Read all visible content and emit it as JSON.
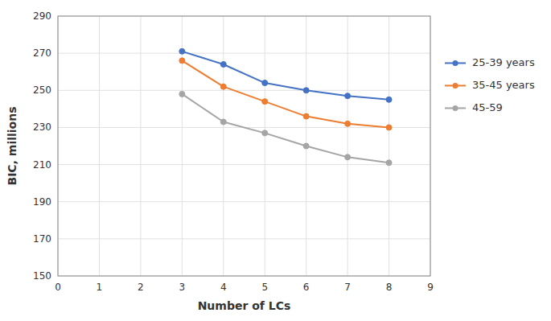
{
  "chart_data": {
    "type": "line",
    "xlabel": "Number of LCs",
    "ylabel": "BIC, millions",
    "x": [
      3,
      4,
      5,
      6,
      7,
      8
    ],
    "series": [
      {
        "name": "25-39 years",
        "color": "#4472C4",
        "values": [
          271,
          264,
          254,
          250,
          247,
          245
        ]
      },
      {
        "name": "35-45 years",
        "color": "#ED7D31",
        "values": [
          266,
          252,
          244,
          236,
          232,
          230
        ]
      },
      {
        "name": "45-59",
        "color": "#A5A5A5",
        "values": [
          248,
          233,
          227,
          220,
          214,
          211
        ]
      }
    ],
    "xlim": [
      0,
      9
    ],
    "ylim": [
      150,
      290
    ],
    "xticks": [
      0,
      1,
      2,
      3,
      4,
      5,
      6,
      7,
      8,
      9
    ],
    "yticks": [
      150,
      170,
      190,
      210,
      230,
      250,
      270,
      290
    ],
    "marker": "circle",
    "grid": true,
    "legend": "right"
  }
}
